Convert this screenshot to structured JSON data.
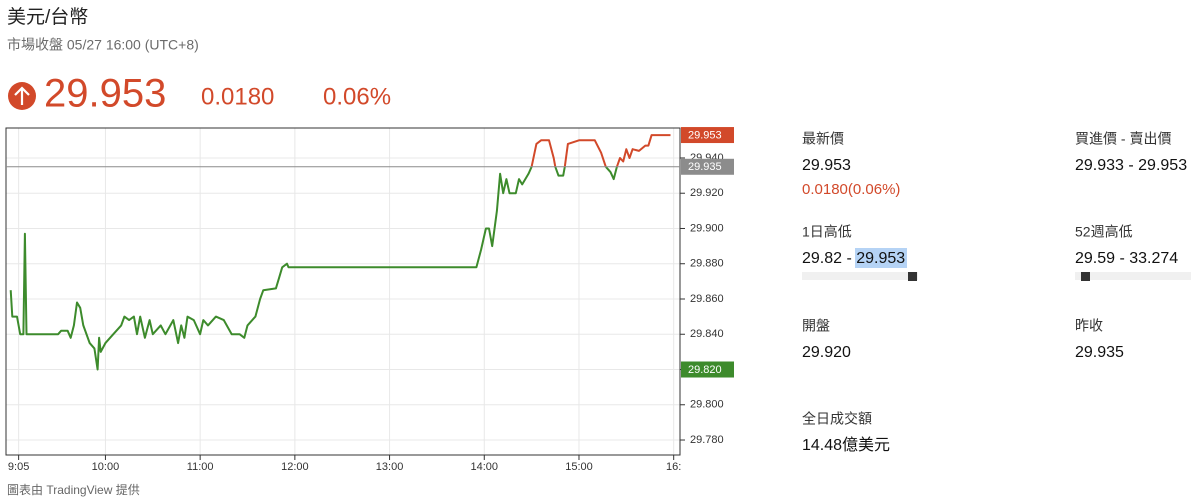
{
  "header": {
    "title": "美元/台幣",
    "subtitle": "市場收盤 05/27 16:00 (UTC+8)"
  },
  "quote": {
    "price": "29.953",
    "change": "0.0180",
    "change_pct": "0.06%"
  },
  "stats": {
    "latest": {
      "label": "最新價",
      "value": "29.953",
      "change": "0.0180(0.06%)"
    },
    "bid_ask": {
      "label": "買進價 - 賣出價",
      "value": "29.933 - 29.953"
    },
    "day_range": {
      "label": "1日高低",
      "value": "29.82 - 29.953"
    },
    "week52_range": {
      "label": "52週高低",
      "value": "29.59 - 33.274"
    },
    "open": {
      "label": "開盤",
      "value": "29.920"
    },
    "prev_close": {
      "label": "昨收",
      "value": "29.935"
    },
    "volume": {
      "label": "全日成交額",
      "value": "14.48億美元"
    }
  },
  "chart_data": {
    "type": "line",
    "grid": true,
    "xlim": [
      "8:57",
      "16:04"
    ],
    "xticks": [
      "9:05",
      "10:00",
      "11:00",
      "12:00",
      "13:00",
      "14:00",
      "15:00",
      {
        "value": "16:00",
        "label": "16:"
      }
    ],
    "ylim": [
      29.7715,
      29.957
    ],
    "yticks": [
      {
        "value": 29.78,
        "label": "29.780"
      },
      {
        "value": 29.8,
        "label": "29.800"
      },
      {
        "value": 29.82,
        "label": "29.820"
      },
      {
        "value": 29.84,
        "label": "29.840"
      },
      {
        "value": 29.86,
        "label": "29.860"
      },
      {
        "value": 29.88,
        "label": "29.880"
      },
      {
        "value": 29.9,
        "label": "29.900"
      },
      {
        "value": 29.92,
        "label": "29.920"
      },
      {
        "value": 29.94,
        "label": "29.940"
      }
    ],
    "series": [
      {
        "color": "#3d8b2c",
        "x": [
          "9:00",
          "9:01",
          "9:04",
          "9:06",
          "9:08",
          "9:09",
          "9:10",
          "9:30",
          "9:32",
          "9:36",
          "9:38",
          "9:40",
          "9:42",
          "9:44",
          "9:46",
          "9:50",
          "9:53",
          "9:55",
          "9:56",
          "9:57",
          "10:00",
          "10:05",
          "10:10",
          "10:12",
          "10:15",
          "10:18",
          "10:20",
          "10:22",
          "10:25",
          "10:28",
          "10:30",
          "10:35",
          "10:38",
          "10:43",
          "10:46",
          "10:48",
          "10:50",
          "10:52",
          "10:56",
          "11:00",
          "11:02",
          "11:05",
          "11:10",
          "11:15",
          "11:20",
          "11:25",
          "11:28",
          "11:30",
          "11:35",
          "11:38",
          "11:40",
          "11:48",
          "11:50",
          "11:52",
          "11:55",
          "11:56",
          "12:00",
          "13:55",
          "13:58",
          "14:01",
          "14:03",
          "14:05",
          "14:08",
          "14:10",
          "14:12",
          "14:14",
          "14:16",
          "14:20",
          "14:22",
          "14:24",
          "14:28",
          "14:30",
          "14:36",
          "14:45",
          "14:47",
          "14:50",
          "14:51",
          "15:00",
          "15:17",
          "15:20",
          "15:22",
          "15:24"
        ],
        "values": [
          29.865,
          29.85,
          29.85,
          29.84,
          29.84,
          29.897,
          29.84,
          29.84,
          29.842,
          29.842,
          29.838,
          29.845,
          29.858,
          29.855,
          29.845,
          29.835,
          29.832,
          29.82,
          29.838,
          29.83,
          29.835,
          29.84,
          29.845,
          29.85,
          29.848,
          29.85,
          29.84,
          29.85,
          29.838,
          29.848,
          29.84,
          29.845,
          29.84,
          29.848,
          29.835,
          29.845,
          29.838,
          29.85,
          29.848,
          29.84,
          29.848,
          29.845,
          29.85,
          29.848,
          29.84,
          29.84,
          29.838,
          29.845,
          29.85,
          29.86,
          29.865,
          29.866,
          29.872,
          29.878,
          29.88,
          29.878,
          29.878,
          29.878,
          29.888,
          29.9,
          29.9,
          29.89,
          29.91,
          29.931,
          29.92,
          29.928,
          29.92,
          29.92,
          29.928,
          29.925,
          29.931,
          29.935,
          null,
          29.935,
          29.93,
          29.93,
          29.935,
          null,
          29.935,
          29.932,
          29.928,
          29.935
        ]
      },
      {
        "color": "#d2492a",
        "x": [
          "14:30",
          "14:33",
          "14:36",
          "14:41",
          "14:44",
          "14:45",
          "14:47",
          "14:51",
          "14:53",
          "15:00",
          "15:10",
          "15:14",
          "15:17",
          "15:20",
          "15:24",
          "15:26",
          "15:28",
          "15:30",
          "15:32",
          "15:34",
          "15:38",
          "15:42",
          "15:44",
          "15:46",
          "15:58"
        ],
        "values": [
          29.935,
          29.948,
          29.95,
          29.95,
          29.94,
          29.935,
          null,
          29.935,
          29.948,
          29.95,
          29.95,
          29.943,
          29.935,
          null,
          29.935,
          29.94,
          29.938,
          29.945,
          29.94,
          29.945,
          29.944,
          29.947,
          29.947,
          29.953,
          29.953
        ]
      }
    ],
    "price_tags": [
      {
        "value": 29.953,
        "color": "#d2492a"
      },
      {
        "value": 29.935,
        "color": "#8c8c8c",
        "line": true
      },
      {
        "value": 29.82,
        "label": "29.820",
        "color": "#3d8b2c"
      }
    ]
  },
  "footer": "圖表由 TradingView 提供"
}
